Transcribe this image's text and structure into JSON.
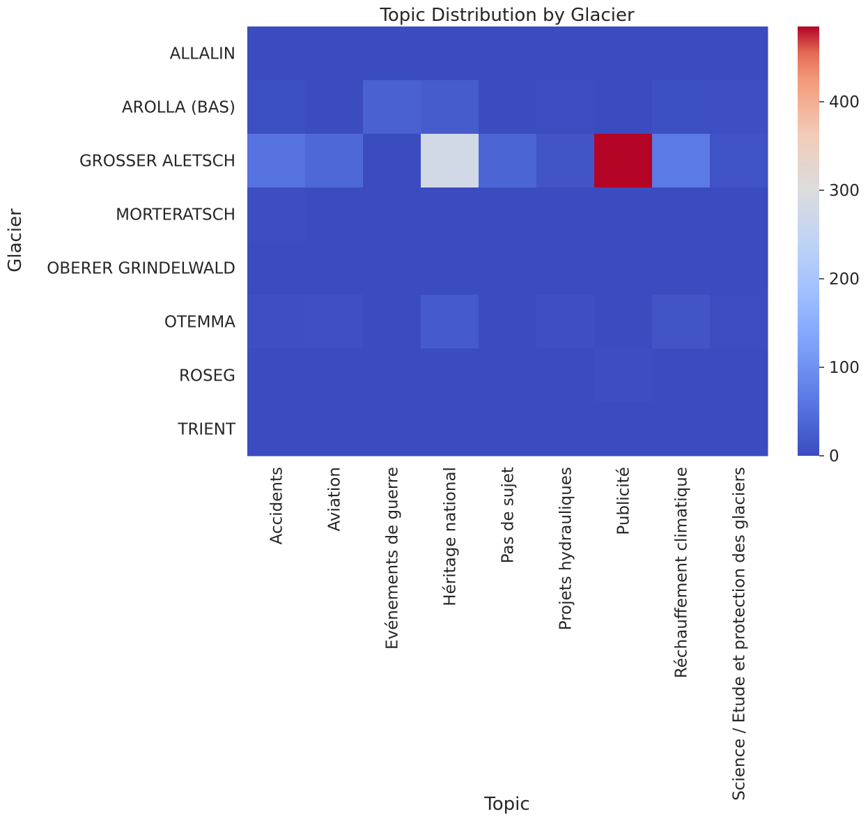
{
  "chart_data": {
    "type": "heatmap",
    "title": "Topic Distribution by Glacier",
    "xlabel": "Topic",
    "ylabel": "Glacier",
    "x_categories": [
      "Accidents",
      "Aviation",
      "Evénements de guerre",
      "Héritage national",
      "Pas de sujet",
      "Projets hydrauliques",
      "Publicité",
      "Réchauffement climatique",
      "Science / Etude et protection des glaciers"
    ],
    "y_categories": [
      "ALLALIN",
      "AROLLA (BAS)",
      "GROSSER ALETSCH",
      "MORTERATSCH",
      "OBERER GRINDELWALD",
      "OTEMMA",
      "ROSEG",
      "TRIENT"
    ],
    "values": [
      [
        0,
        0,
        0,
        0,
        0,
        0,
        0,
        0,
        0
      ],
      [
        5,
        0,
        30,
        22,
        0,
        2,
        0,
        5,
        4
      ],
      [
        55,
        40,
        0,
        280,
        35,
        12,
        485,
        65,
        10
      ],
      [
        3,
        0,
        0,
        0,
        0,
        0,
        0,
        0,
        0
      ],
      [
        0,
        0,
        0,
        0,
        0,
        0,
        0,
        0,
        0
      ],
      [
        4,
        6,
        0,
        20,
        0,
        4,
        0,
        12,
        2
      ],
      [
        0,
        0,
        0,
        0,
        0,
        0,
        3,
        0,
        0
      ],
      [
        0,
        0,
        0,
        0,
        0,
        0,
        0,
        0,
        0
      ]
    ],
    "colormap": "coolwarm",
    "vmin": 0,
    "vmax": 485,
    "colorbar_ticks": [
      0,
      100,
      200,
      300,
      400
    ],
    "colorbar_tick_labels": [
      "0",
      "100",
      "200",
      "300",
      "400"
    ]
  }
}
